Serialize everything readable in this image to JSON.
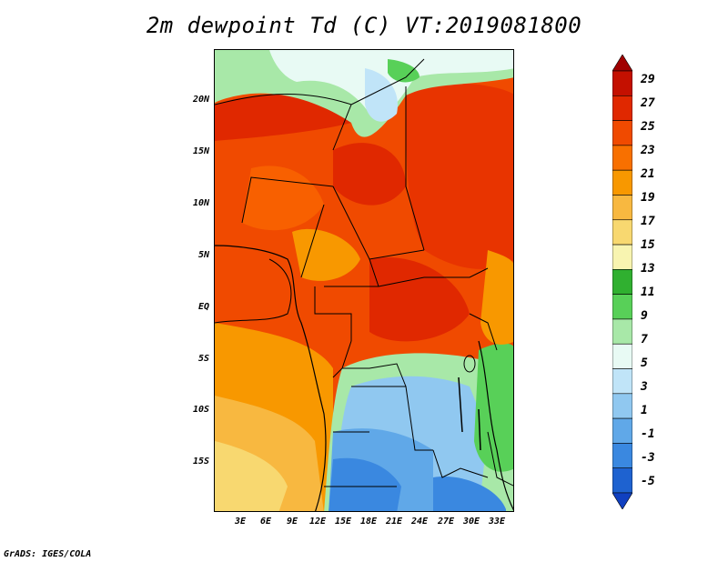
{
  "title": "2m dewpoint Td (C) VT:2019081800",
  "footer": "GrADS: IGES/COLA",
  "axes": {
    "lat_labels": [
      "20N",
      "15N",
      "10N",
      "5N",
      "EQ",
      "5S",
      "10S",
      "15S"
    ],
    "lon_labels": [
      "3E",
      "6E",
      "9E",
      "12E",
      "15E",
      "18E",
      "21E",
      "24E",
      "27E",
      "30E",
      "33E"
    ]
  },
  "colorbar": {
    "labels": [
      "29",
      "27",
      "25",
      "23",
      "21",
      "19",
      "17",
      "15",
      "13",
      "11",
      "9",
      "7",
      "5",
      "3",
      "1",
      "-1",
      "-3",
      "-5"
    ],
    "colors": [
      "#a00000",
      "#c41000",
      "#e02800",
      "#f04a00",
      "#f87000",
      "#f89800",
      "#f8b840",
      "#f8d870",
      "#f8f4b0",
      "#30b030",
      "#58d058",
      "#a8e8a8",
      "#e8faf4",
      "#c0e4f8",
      "#90c8f0",
      "#60a8e8",
      "#3a88e0",
      "#1e62d0",
      "#1040c0"
    ]
  }
}
